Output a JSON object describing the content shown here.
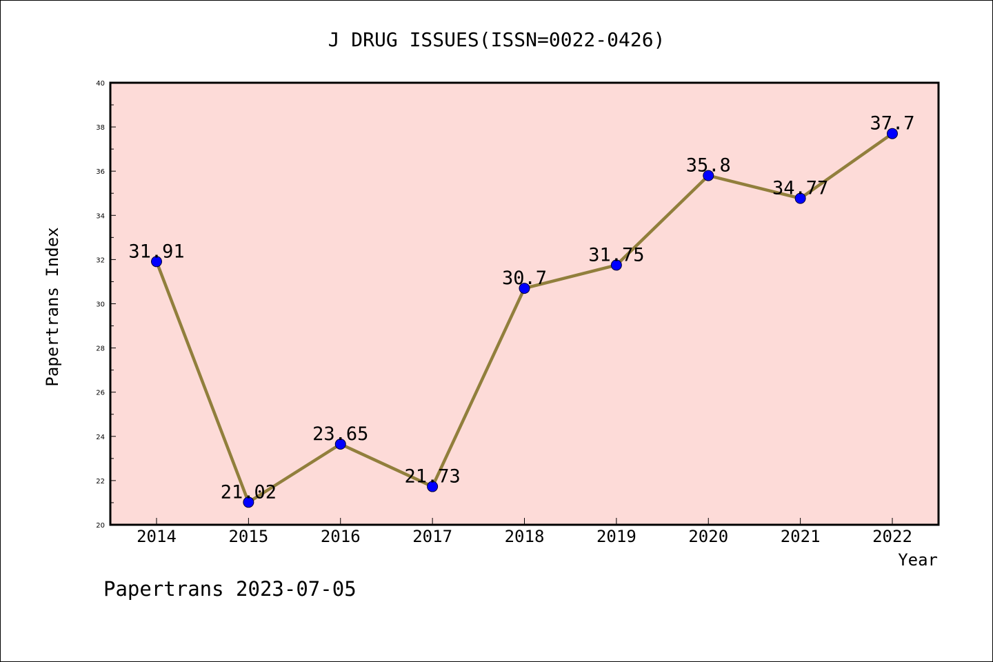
{
  "chart_data": {
    "type": "line",
    "title": "J DRUG ISSUES(ISSN=0022-0426)",
    "xlabel": "Year",
    "ylabel": "Papertrans Index",
    "categories": [
      "2014",
      "2015",
      "2016",
      "2017",
      "2018",
      "2019",
      "2020",
      "2021",
      "2022"
    ],
    "series": [
      {
        "values": [
          31.91,
          21.02,
          23.65,
          21.73,
          30.7,
          31.75,
          35.8,
          34.77,
          37.7
        ],
        "labels": [
          "31.91",
          "21.02",
          "23.65",
          "21.73",
          "30.7",
          "31.75",
          "35.8",
          "34.77",
          "37.7"
        ]
      }
    ],
    "ylim": [
      20,
      40
    ],
    "yticks": [
      "20",
      "22",
      "24",
      "26",
      "28",
      "30",
      "32",
      "34",
      "36",
      "38",
      "40"
    ],
    "grid": false,
    "legend": "none",
    "colors": {
      "plot_background": "#fddbd8",
      "line": "#917f3c",
      "marker": "#0000ff",
      "axis": "#000000"
    }
  },
  "footer": "Papertrans 2023-07-05"
}
